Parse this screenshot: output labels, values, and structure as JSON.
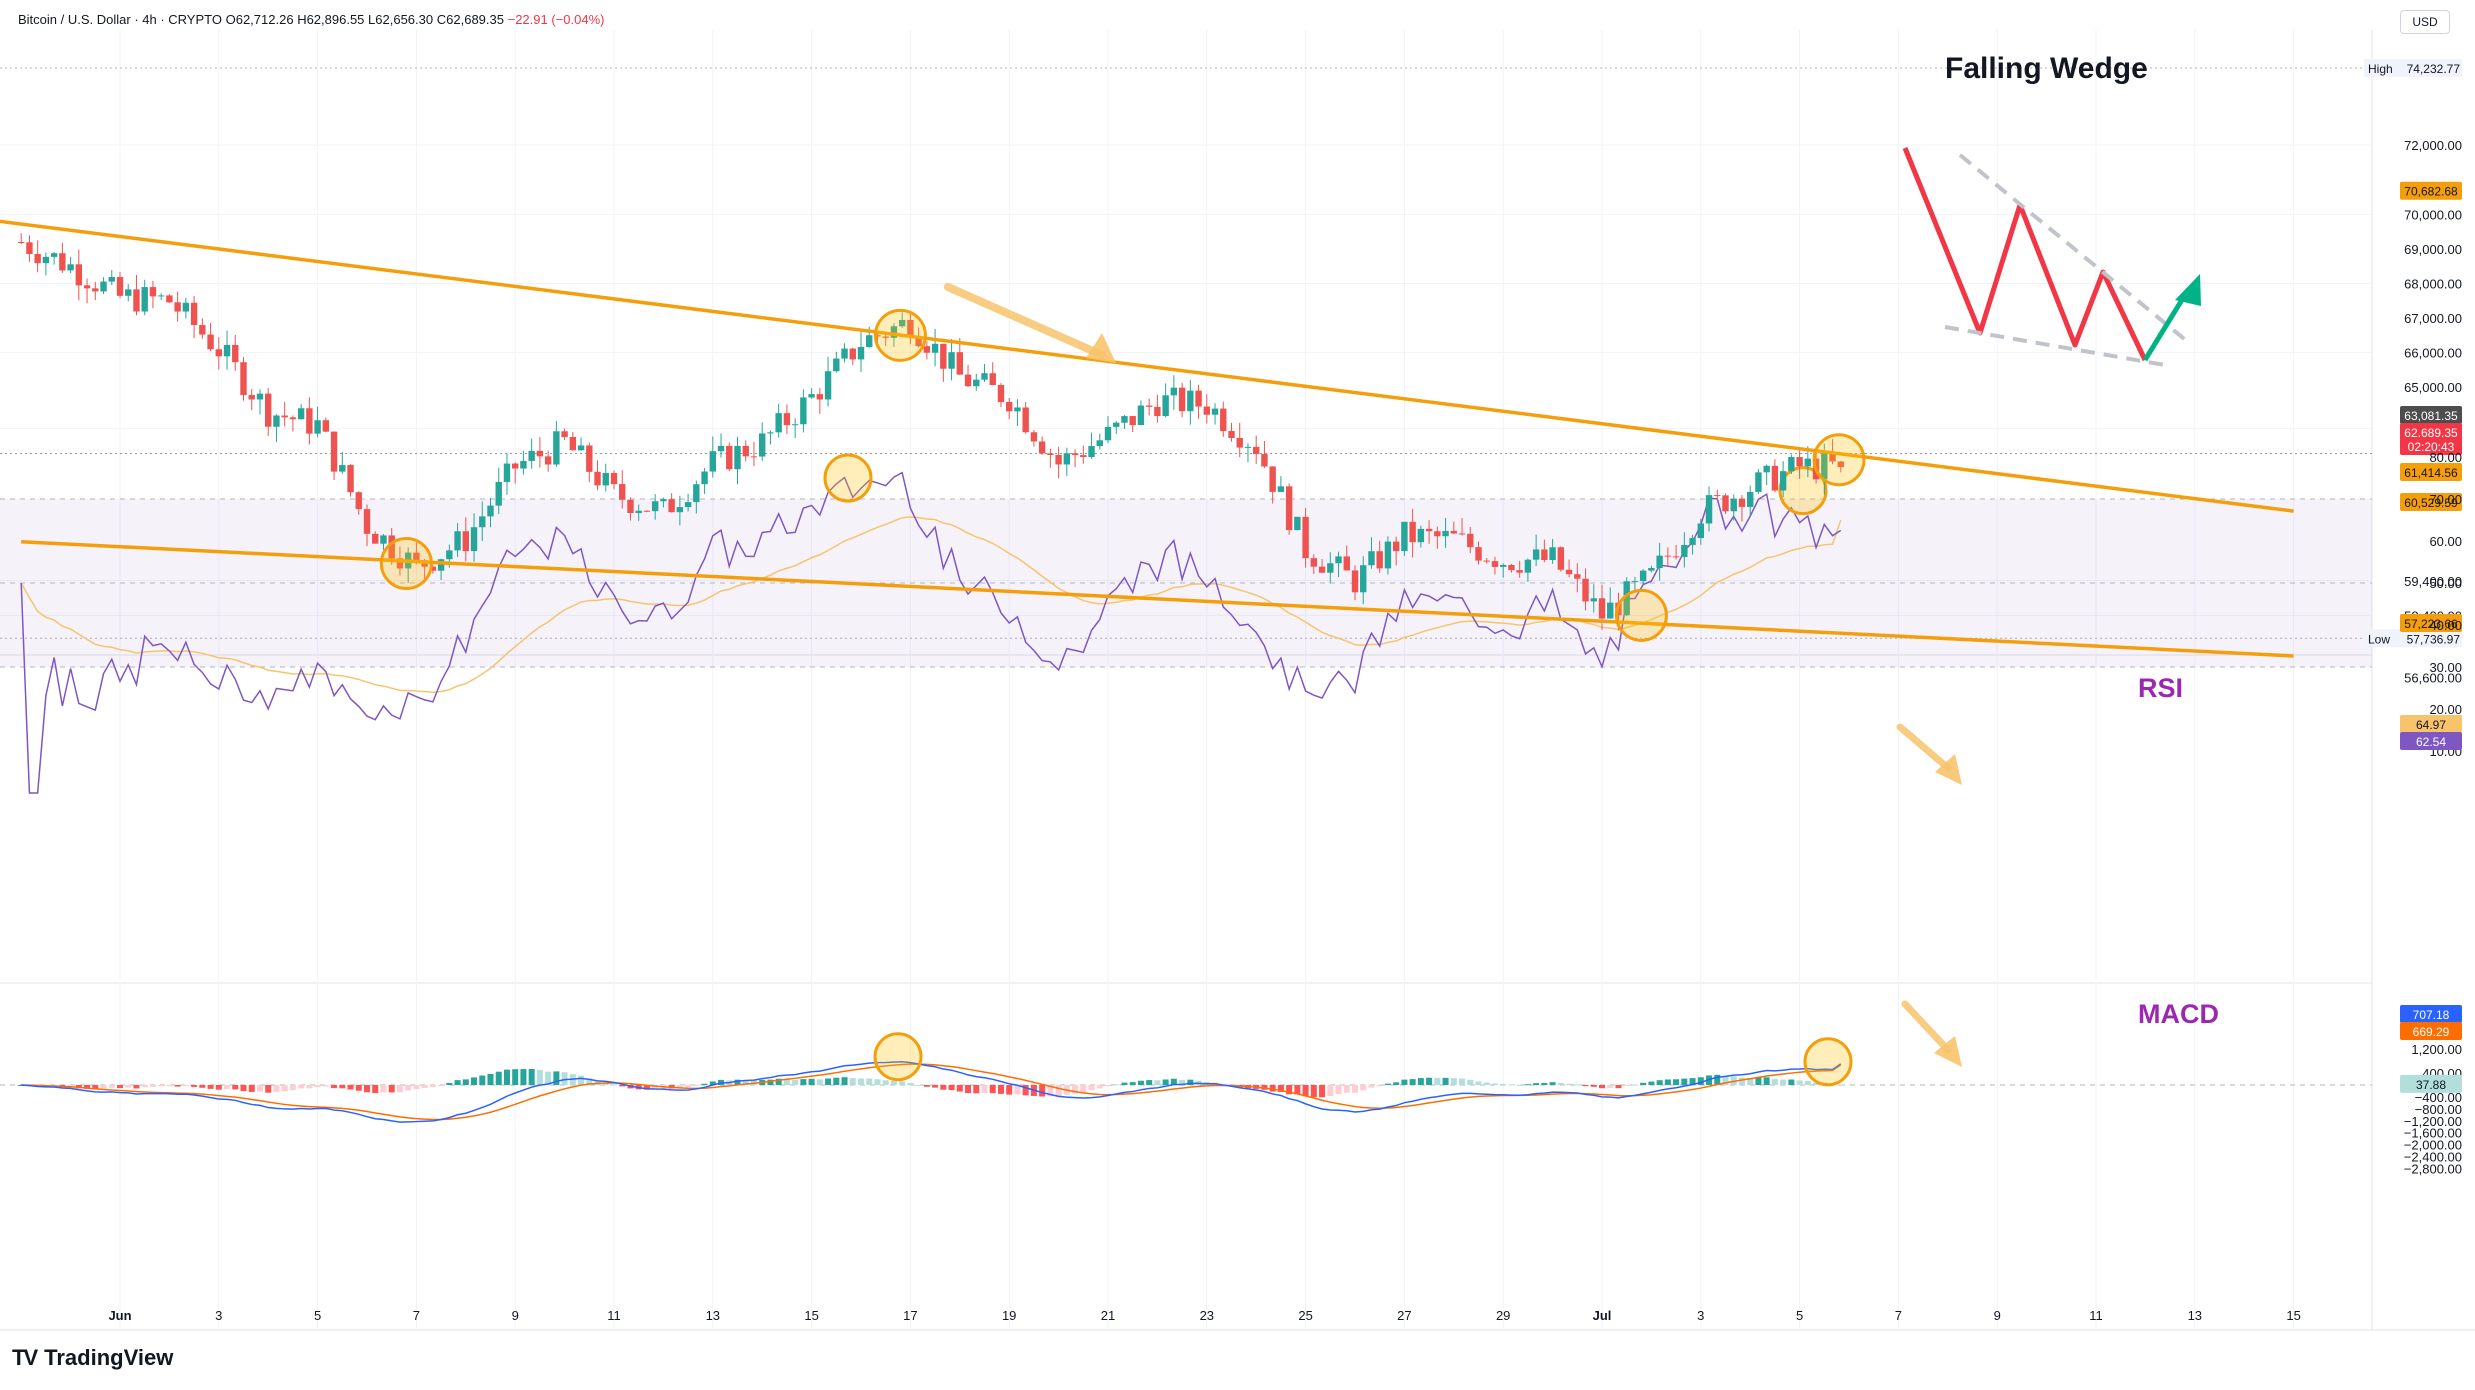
{
  "header": {
    "symbol": "Bitcoin / U.S. Dollar · 4h · CRYPTO",
    "open": "O62,712.26",
    "high": "H62,896.55",
    "low": "L62,656.30",
    "close": "C62,689.35",
    "change": "−22.91 (−0.04%)"
  },
  "currency_button": "USD",
  "brand": "TradingView",
  "annotations": {
    "pattern_title": "Falling Wedge",
    "rsi_label": "RSI",
    "macd_label": "MACD"
  },
  "colors": {
    "up": "#26a69a",
    "down": "#ef5350",
    "trendline": "#f59e0b",
    "rsi_line": "#7e57c2",
    "rsi_ma": "#f7c46c",
    "macd_line": "#2962ff",
    "signal_line": "#ff6d00",
    "wedge_zigzag": "#f23645",
    "breakout_arrow": "#00b386"
  },
  "price_axis": {
    "ticks": [
      "72,000.00",
      "70,000.00",
      "69,000.00",
      "68,000.00",
      "67,000.00",
      "66,000.00",
      "65,000.00",
      "63,800.00",
      "59,400.00",
      "58,400.00",
      "56,600.00"
    ],
    "high_label": "High",
    "high_value": "74,232.77",
    "low_label": "Low",
    "low_value": "57,736.97",
    "badges": [
      {
        "value": "70,682.68",
        "color": "#f59e0b",
        "text": "#131722"
      },
      {
        "value": "63,081.35",
        "color": "#4d4d4d",
        "text": "#ffffff"
      },
      {
        "value": "62,689.35",
        "color": "#f23645",
        "text": "#ffffff"
      },
      {
        "value": "02:20:43",
        "color": "#f23645",
        "text": "#ffffff"
      },
      {
        "value": "61,414.56",
        "color": "#f59e0b",
        "text": "#131722"
      },
      {
        "value": "60,529.59",
        "color": "#f59e0b",
        "text": "#131722"
      },
      {
        "value": "57,223.66",
        "color": "#f59e0b",
        "text": "#131722"
      }
    ]
  },
  "rsi_axis": {
    "ticks": [
      "80.00",
      "70.00",
      "60.00",
      "50.00",
      "40.00",
      "30.00",
      "20.00",
      "10.00"
    ],
    "badges": [
      {
        "value": "64.97",
        "color": "#f7c46c",
        "text": "#131722"
      },
      {
        "value": "62.54",
        "color": "#7e57c2",
        "text": "#ffffff"
      }
    ]
  },
  "macd_axis": {
    "ticks": [
      "1,200.00",
      "400.00",
      "−400.00",
      "−800.00",
      "−1,200.00",
      "−1,600.00",
      "−2,000.00",
      "−2,400.00",
      "−2,800.00"
    ],
    "badges": [
      {
        "value": "707.18",
        "color": "#2962ff",
        "text": "#ffffff"
      },
      {
        "value": "669.29",
        "color": "#ff6d00",
        "text": "#ffffff"
      },
      {
        "value": "37.88",
        "color": "#b2dfdb",
        "text": "#131722"
      }
    ]
  },
  "time_axis": [
    "Jun",
    "3",
    "5",
    "7",
    "9",
    "11",
    "13",
    "15",
    "17",
    "19",
    "21",
    "23",
    "25",
    "27",
    "29",
    "Jul",
    "3",
    "5",
    "7",
    "9",
    "11",
    "13",
    "15"
  ],
  "chart_data": {
    "type": "candlestick",
    "interval": "4h",
    "price_range": [
      56000,
      74800
    ],
    "time_range": [
      "2024-05-29",
      "2024-07-17"
    ],
    "anchors": [
      {
        "date": "2024-05-29",
        "close": 69200
      },
      {
        "date": "2024-05-30",
        "close": 68500
      },
      {
        "date": "2024-05-31",
        "close": 67600
      },
      {
        "date": "2024-06-01",
        "close": 67500
      },
      {
        "date": "2024-06-02",
        "close": 66100
      },
      {
        "date": "2024-06-03",
        "close": 64300
      },
      {
        "date": "2024-06-04",
        "close": 63900
      },
      {
        "date": "2024-06-05",
        "close": 61000
      },
      {
        "date": "2024-06-06",
        "close": 59800
      },
      {
        "date": "2024-06-07",
        "close": 60600
      },
      {
        "date": "2024-06-08",
        "close": 62700
      },
      {
        "date": "2024-06-09",
        "close": 63400
      },
      {
        "date": "2024-06-10",
        "close": 61900
      },
      {
        "date": "2024-06-11",
        "close": 61400
      },
      {
        "date": "2024-06-12",
        "close": 62800
      },
      {
        "date": "2024-06-13",
        "close": 63400
      },
      {
        "date": "2024-06-14",
        "close": 64700
      },
      {
        "date": "2024-06-15",
        "close": 66300
      },
      {
        "date": "2024-06-16",
        "close": 66900
      },
      {
        "date": "2024-06-17",
        "close": 65300
      },
      {
        "date": "2024-06-18",
        "close": 64700
      },
      {
        "date": "2024-06-19",
        "close": 62800
      },
      {
        "date": "2024-06-20",
        "close": 63600
      },
      {
        "date": "2024-06-21",
        "close": 64600
      },
      {
        "date": "2024-06-22",
        "close": 64500
      },
      {
        "date": "2024-06-23",
        "close": 63300
      },
      {
        "date": "2024-06-24",
        "close": 60300
      },
      {
        "date": "2024-06-25",
        "close": 59400
      },
      {
        "date": "2024-06-26",
        "close": 60700
      },
      {
        "date": "2024-06-27",
        "close": 60600
      },
      {
        "date": "2024-06-28",
        "close": 60000
      },
      {
        "date": "2024-06-29",
        "close": 60000
      },
      {
        "date": "2024-06-30",
        "close": 58400
      },
      {
        "date": "2024-07-01",
        "close": 59500
      },
      {
        "date": "2024-07-02",
        "close": 61400
      },
      {
        "date": "2024-07-03",
        "close": 62100
      },
      {
        "date": "2024-07-04",
        "close": 62700
      },
      {
        "date": "2024-07-04T20:00",
        "close": 62689.35
      }
    ],
    "trendlines": [
      {
        "name": "upper",
        "from": {
          "date": "2024-05-28",
          "price": 69900
        },
        "to": {
          "date": "2024-07-14",
          "price": 61414.56
        }
      },
      {
        "name": "lower",
        "from": {
          "date": "2024-05-29",
          "price": 60529.59
        },
        "to": {
          "date": "2024-07-14",
          "price": 57223.66
        }
      }
    ],
    "rsi": {
      "range": [
        0,
        90
      ],
      "overbought": 70,
      "mid": 50,
      "oversold": 30,
      "last": 62.54,
      "ma_last": 64.97
    },
    "macd": {
      "range": [
        -2900,
        1300
      ],
      "last_macd": 707.18,
      "last_signal": 669.29,
      "last_hist": 37.88
    }
  }
}
